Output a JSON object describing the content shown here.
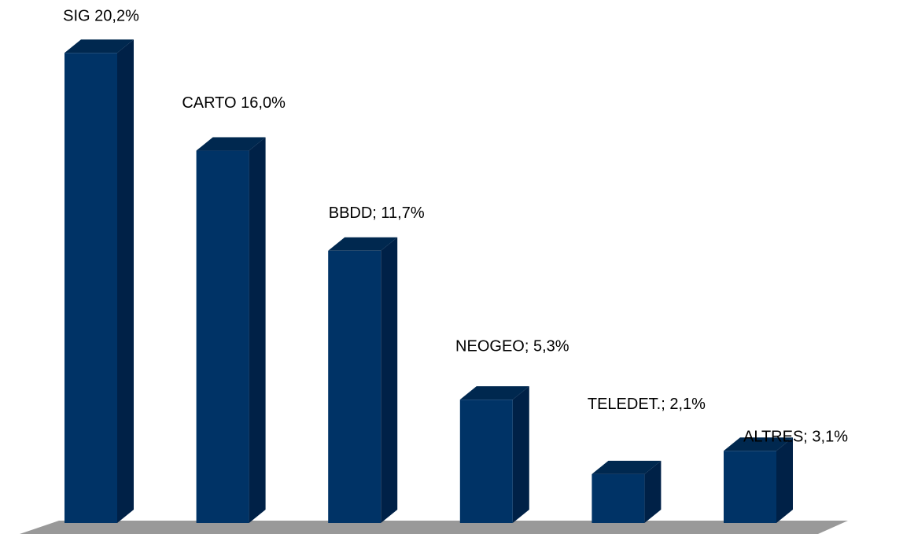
{
  "chart_data": {
    "type": "bar3d",
    "values": [
      20.2,
      16.0,
      11.7,
      5.3,
      2.1,
      3.1
    ],
    "value_labels": [
      "SIG 20,2%",
      "CARTO 16,0%",
      "BBDD; 11,7%",
      "NEOGEO; 5,3%",
      "TELEDET.; 2,1%",
      "ALTRES; 3,1%"
    ],
    "color": "#003366",
    "ylim": [
      0,
      22
    ]
  }
}
